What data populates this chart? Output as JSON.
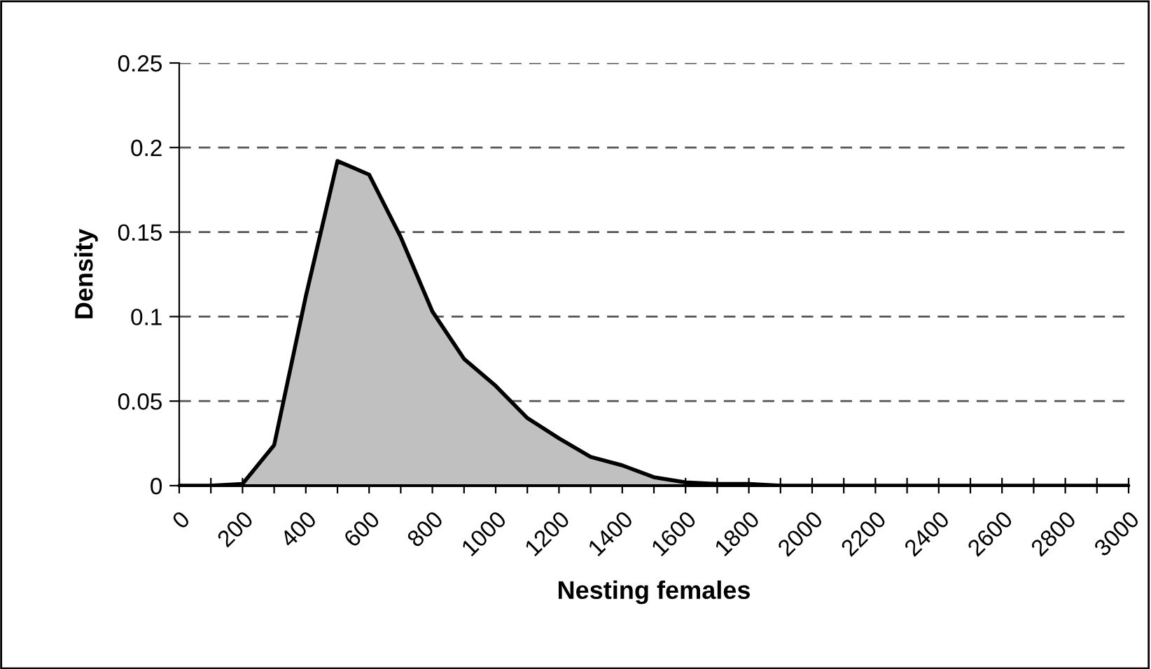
{
  "chart_data": {
    "type": "area",
    "xlabel": "Nesting females",
    "ylabel": "Density",
    "x": [
      0,
      100,
      200,
      300,
      400,
      500,
      600,
      700,
      800,
      900,
      1000,
      1100,
      1200,
      1300,
      1400,
      1500,
      1600,
      1700,
      1800,
      1900,
      2000,
      2100,
      2200,
      2300,
      2400,
      2500,
      2600,
      2700,
      2800,
      2900,
      3000
    ],
    "series": [
      {
        "color": "#c0c0c0",
        "values": [
          0,
          0,
          0.001,
          0.024,
          0.112,
          0.192,
          0.184,
          0.147,
          0.103,
          0.075,
          0.059,
          0.04,
          0.028,
          0.017,
          0.012,
          0.005,
          0.002,
          0.001,
          0.001,
          0,
          0,
          0,
          0,
          0,
          0,
          0,
          0,
          0,
          0,
          0,
          0
        ]
      }
    ],
    "xlim": [
      0,
      3000
    ],
    "xticks": [
      0,
      {
        "value": 100,
        "label": null
      },
      200,
      {
        "value": 300,
        "label": null
      },
      400,
      {
        "value": 500,
        "label": null
      },
      600,
      {
        "value": 700,
        "label": null
      },
      800,
      {
        "value": 900,
        "label": null
      },
      1000,
      {
        "value": 1100,
        "label": null
      },
      1200,
      {
        "value": 1300,
        "label": null
      },
      1400,
      {
        "value": 1500,
        "label": null
      },
      1600,
      {
        "value": 1700,
        "label": null
      },
      1800,
      {
        "value": 1900,
        "label": null
      },
      2000,
      {
        "value": 2100,
        "label": null
      },
      2200,
      {
        "value": 2300,
        "label": null
      },
      2400,
      {
        "value": 2500,
        "label": null
      },
      2600,
      {
        "value": 2700,
        "label": null
      },
      2800,
      {
        "value": 2900,
        "label": null
      },
      3000
    ],
    "ylim": [
      0,
      0.25
    ],
    "yticks": [
      0,
      0.05,
      0.1,
      0.15,
      0.2,
      0.25
    ],
    "grid": "y",
    "line_style": "solid"
  }
}
